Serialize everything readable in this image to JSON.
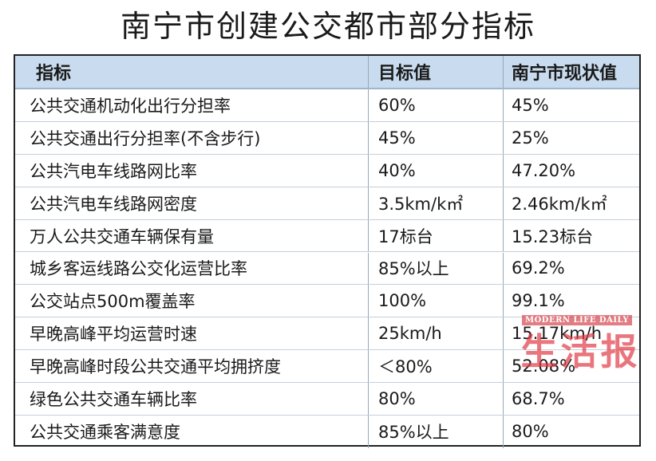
{
  "title": "南宁市创建公交都市部分指标",
  "table": {
    "headers": [
      "指标",
      "目标值",
      "南宁市现状值"
    ],
    "rows": [
      [
        "公共交通机动化出行分担率",
        "60%",
        "45%"
      ],
      [
        "公共交通出行分担率(不含步行)",
        "45%",
        "25%"
      ],
      [
        "公共汽电车线路网比率",
        "40%",
        "47.20%"
      ],
      [
        "公共汽电车线路网密度",
        "3.5km/k㎡",
        "2.46km/k㎡"
      ],
      [
        "万人公共交通车辆保有量",
        "17标台",
        "15.23标台"
      ],
      [
        "城乡客运线路公交化运营比率",
        "85%以上",
        "69.2%"
      ],
      [
        "公交站点500m覆盖率",
        "100%",
        "99.1%"
      ],
      [
        "早晚高峰平均运营时速",
        "25km/h",
        "15.17km/h"
      ],
      [
        "早晚高峰时段公共交通平均拥挤度",
        "＜80%",
        "52.08%"
      ],
      [
        "绿色公共交通车辆比率",
        "80%",
        "68.7%"
      ],
      [
        "公共交通乘客满意度",
        "85%以上",
        "80%"
      ]
    ]
  },
  "watermark": {
    "tag": "MODERN LIFE DAILY",
    "text": "生活报"
  }
}
